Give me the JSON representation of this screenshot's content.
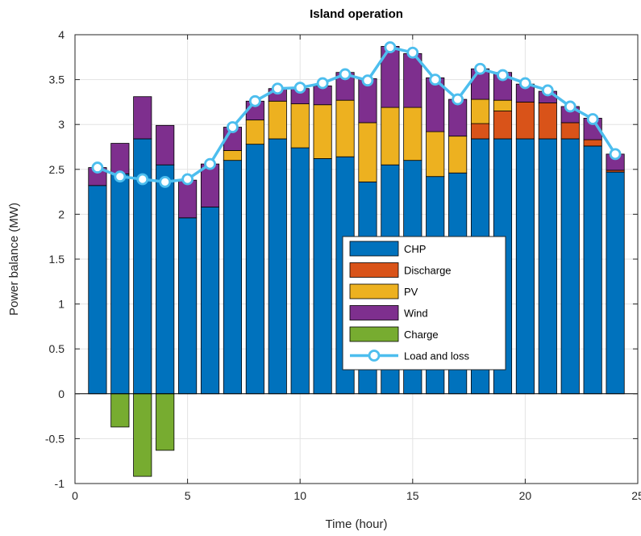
{
  "chart_data": {
    "type": "bar",
    "stacked": true,
    "title": "Island operation",
    "xlabel": "Time (hour)",
    "ylabel": "Power balance (MW)",
    "xlim": [
      0,
      25
    ],
    "ylim": [
      -1,
      4
    ],
    "grid": true,
    "legend_position": "center-right",
    "x": [
      1,
      2,
      3,
      4,
      5,
      6,
      7,
      8,
      9,
      10,
      11,
      12,
      13,
      14,
      15,
      16,
      17,
      18,
      19,
      20,
      21,
      22,
      23,
      24
    ],
    "xticks": [
      "0",
      "5",
      "10",
      "15",
      "20",
      "25"
    ],
    "yticks": [
      "-1",
      "-0.5",
      "0",
      "0.5",
      "1",
      "1.5",
      "2",
      "2.5",
      "3",
      "3.5",
      "4"
    ],
    "series": [
      {
        "name": "CHP",
        "kind": "bar",
        "color": "#0072BD",
        "values": [
          2.32,
          2.45,
          2.84,
          2.55,
          1.96,
          2.08,
          2.6,
          2.78,
          2.84,
          2.74,
          2.62,
          2.64,
          2.36,
          2.55,
          2.6,
          2.42,
          2.46,
          2.84,
          2.84,
          2.84,
          2.84,
          2.84,
          2.76,
          2.47
        ]
      },
      {
        "name": "Discharge",
        "kind": "bar",
        "color": "#D95319",
        "values": [
          0,
          0,
          0,
          0,
          0,
          0,
          0,
          0,
          0,
          0,
          0,
          0,
          0,
          0,
          0,
          0,
          0,
          0.17,
          0.31,
          0.41,
          0.4,
          0.18,
          0.07,
          0.02
        ]
      },
      {
        "name": "PV",
        "kind": "bar",
        "color": "#EDB120",
        "values": [
          0,
          0,
          0,
          0,
          0,
          0,
          0.11,
          0.27,
          0.42,
          0.49,
          0.6,
          0.63,
          0.66,
          0.64,
          0.59,
          0.5,
          0.41,
          0.27,
          0.12,
          0,
          0,
          0,
          0,
          0
        ]
      },
      {
        "name": "Wind",
        "kind": "bar",
        "color": "#7E2F8E",
        "values": [
          0.2,
          0.34,
          0.47,
          0.44,
          0.42,
          0.48,
          0.26,
          0.21,
          0.14,
          0.17,
          0.21,
          0.31,
          0.49,
          0.68,
          0.6,
          0.6,
          0.41,
          0.34,
          0.31,
          0.2,
          0.13,
          0.18,
          0.24,
          0.18
        ]
      },
      {
        "name": "Charge",
        "kind": "bar",
        "color": "#77AC30",
        "values": [
          0,
          -0.37,
          -0.92,
          -0.63,
          0,
          0,
          0,
          0,
          0,
          0,
          0,
          0,
          0,
          0,
          0,
          0,
          0,
          0,
          0,
          0,
          0,
          0,
          0,
          0
        ]
      },
      {
        "name": "Load and loss",
        "kind": "line",
        "color": "#4DBEEE",
        "values": [
          2.52,
          2.42,
          2.39,
          2.36,
          2.39,
          2.56,
          2.97,
          3.26,
          3.4,
          3.41,
          3.46,
          3.56,
          3.49,
          3.86,
          3.8,
          3.5,
          3.28,
          3.62,
          3.55,
          3.46,
          3.38,
          3.2,
          3.06,
          2.67
        ]
      }
    ]
  }
}
